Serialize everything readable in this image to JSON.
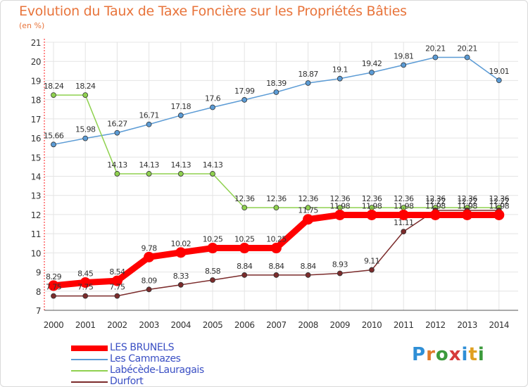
{
  "title": "Evolution du Taux de Taxe Foncière sur les Propriétés Bâties",
  "unit": "(en %)",
  "logo": {
    "letters": [
      "P",
      "r",
      "o",
      "x",
      "i",
      "t",
      "i"
    ],
    "colors": [
      "#2f8fd6",
      "#e07a2a",
      "#3c9a3c",
      "#d63b3b",
      "#2f8fd6",
      "#e0a020",
      "#3c9a3c"
    ]
  },
  "chart_data": {
    "type": "line",
    "title": "Evolution du Taux de Taxe Foncière sur les Propriétés Bâties",
    "ylabel": "(en %)",
    "xlabel": "",
    "x": [
      "2000",
      "2001",
      "2002",
      "2003",
      "2004",
      "2005",
      "2006",
      "2007",
      "2008",
      "2009",
      "2010",
      "2011",
      "2012",
      "2013",
      "2014"
    ],
    "ylim": [
      7,
      21
    ],
    "yticks": [
      "7",
      "8",
      "9",
      "10",
      "11",
      "12",
      "13",
      "14",
      "15",
      "16",
      "17",
      "18",
      "19",
      "20",
      "21"
    ],
    "legend_position": "bottom-left",
    "series": [
      {
        "name": "LES BRUNELS",
        "color": "#ff0000",
        "values": [
          8.29,
          8.45,
          8.54,
          9.78,
          10.02,
          10.25,
          10.25,
          10.25,
          11.75,
          11.98,
          11.98,
          11.98,
          11.98,
          11.98,
          11.98
        ],
        "labels": [
          "8.29",
          "8.45",
          "8.54",
          "9.78",
          "10.02",
          "10.25",
          "10.25",
          "10.25",
          "11.75",
          "11.98",
          "11.98",
          "11.98",
          "11.98",
          "11.98",
          "11.98"
        ]
      },
      {
        "name": "Les Cammazes",
        "color": "#5b9bd5",
        "values": [
          15.66,
          15.98,
          16.27,
          16.71,
          17.18,
          17.6,
          17.99,
          18.39,
          18.87,
          19.1,
          19.42,
          19.81,
          20.21,
          20.21,
          19.01
        ],
        "labels": [
          "15.66",
          "15.98",
          "16.27",
          "16.71",
          "17.18",
          "17.6",
          "17.99",
          "18.39",
          "18.87",
          "19.1",
          "19.42",
          "19.81",
          "20.21",
          "20.21",
          "19.01"
        ]
      },
      {
        "name": "Labécède-Lauragais",
        "color": "#8fd14f",
        "values": [
          18.24,
          18.24,
          14.13,
          14.13,
          14.13,
          14.13,
          12.36,
          12.36,
          12.36,
          12.36,
          12.36,
          12.36,
          12.36,
          12.36,
          12.36
        ],
        "labels": [
          "18.24",
          "18.24",
          "14.13",
          "14.13",
          "14.13",
          "14.13",
          "12.36",
          "12.36",
          "12.36",
          "12.36",
          "12.36",
          "12.36",
          "12.36",
          "12.36",
          "12.36"
        ]
      },
      {
        "name": "Durfort",
        "color": "#7b2b2b",
        "values": [
          7.75,
          7.75,
          7.75,
          8.09,
          8.33,
          8.58,
          8.84,
          8.84,
          8.84,
          8.93,
          9.11,
          11.11,
          12.22,
          12.22,
          12.22
        ],
        "labels": [
          "7.75",
          "7.75",
          "7.75",
          "8.09",
          "8.33",
          "8.58",
          "8.84",
          "8.84",
          "8.84",
          "8.93",
          "9.11",
          "11.11",
          "12.22",
          "12.22",
          "12.22"
        ]
      }
    ]
  }
}
